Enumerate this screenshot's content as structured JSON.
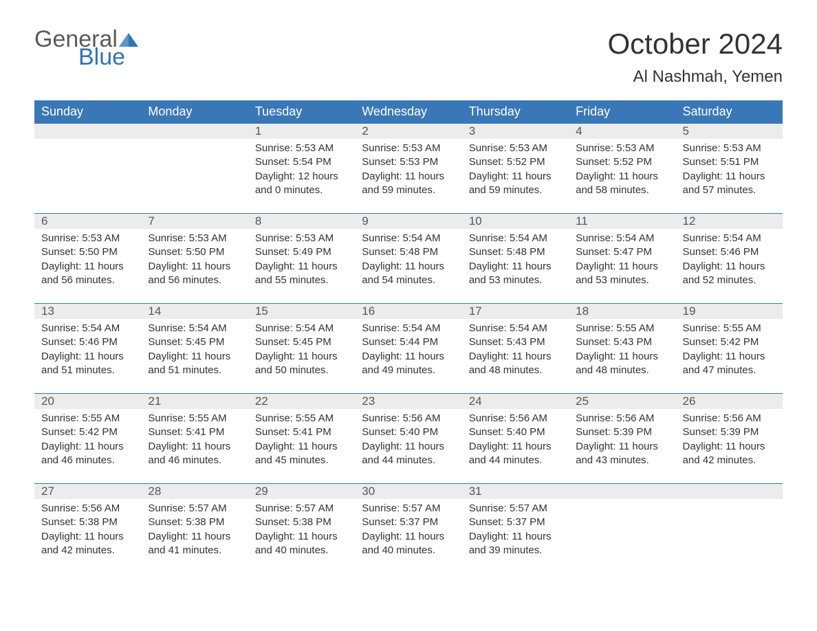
{
  "logo": {
    "word1": "General",
    "word2": "Blue",
    "tri_color": "#2f74b5",
    "text_color": "#5a5a5a"
  },
  "title": "October 2024",
  "location": "Al Nashmah, Yemen",
  "colors": {
    "header_bg": "#3a77b7",
    "header_text": "#ffffff",
    "daynum_bg": "#ececec",
    "row_border": "#3a77b7",
    "body_text": "#333333"
  },
  "fonts": {
    "title_pt": 42,
    "location_pt": 24,
    "header_pt": 18,
    "daynum_pt": 17,
    "body_pt": 15
  },
  "day_headers": [
    "Sunday",
    "Monday",
    "Tuesday",
    "Wednesday",
    "Thursday",
    "Friday",
    "Saturday"
  ],
  "weeks": [
    [
      {
        "empty": true
      },
      {
        "empty": true
      },
      {
        "day": "1",
        "sunrise": "Sunrise: 5:53 AM",
        "sunset": "Sunset: 5:54 PM",
        "dl1": "Daylight: 12 hours",
        "dl2": "and 0 minutes."
      },
      {
        "day": "2",
        "sunrise": "Sunrise: 5:53 AM",
        "sunset": "Sunset: 5:53 PM",
        "dl1": "Daylight: 11 hours",
        "dl2": "and 59 minutes."
      },
      {
        "day": "3",
        "sunrise": "Sunrise: 5:53 AM",
        "sunset": "Sunset: 5:52 PM",
        "dl1": "Daylight: 11 hours",
        "dl2": "and 59 minutes."
      },
      {
        "day": "4",
        "sunrise": "Sunrise: 5:53 AM",
        "sunset": "Sunset: 5:52 PM",
        "dl1": "Daylight: 11 hours",
        "dl2": "and 58 minutes."
      },
      {
        "day": "5",
        "sunrise": "Sunrise: 5:53 AM",
        "sunset": "Sunset: 5:51 PM",
        "dl1": "Daylight: 11 hours",
        "dl2": "and 57 minutes."
      }
    ],
    [
      {
        "day": "6",
        "sunrise": "Sunrise: 5:53 AM",
        "sunset": "Sunset: 5:50 PM",
        "dl1": "Daylight: 11 hours",
        "dl2": "and 56 minutes."
      },
      {
        "day": "7",
        "sunrise": "Sunrise: 5:53 AM",
        "sunset": "Sunset: 5:50 PM",
        "dl1": "Daylight: 11 hours",
        "dl2": "and 56 minutes."
      },
      {
        "day": "8",
        "sunrise": "Sunrise: 5:53 AM",
        "sunset": "Sunset: 5:49 PM",
        "dl1": "Daylight: 11 hours",
        "dl2": "and 55 minutes."
      },
      {
        "day": "9",
        "sunrise": "Sunrise: 5:54 AM",
        "sunset": "Sunset: 5:48 PM",
        "dl1": "Daylight: 11 hours",
        "dl2": "and 54 minutes."
      },
      {
        "day": "10",
        "sunrise": "Sunrise: 5:54 AM",
        "sunset": "Sunset: 5:48 PM",
        "dl1": "Daylight: 11 hours",
        "dl2": "and 53 minutes."
      },
      {
        "day": "11",
        "sunrise": "Sunrise: 5:54 AM",
        "sunset": "Sunset: 5:47 PM",
        "dl1": "Daylight: 11 hours",
        "dl2": "and 53 minutes."
      },
      {
        "day": "12",
        "sunrise": "Sunrise: 5:54 AM",
        "sunset": "Sunset: 5:46 PM",
        "dl1": "Daylight: 11 hours",
        "dl2": "and 52 minutes."
      }
    ],
    [
      {
        "day": "13",
        "sunrise": "Sunrise: 5:54 AM",
        "sunset": "Sunset: 5:46 PM",
        "dl1": "Daylight: 11 hours",
        "dl2": "and 51 minutes."
      },
      {
        "day": "14",
        "sunrise": "Sunrise: 5:54 AM",
        "sunset": "Sunset: 5:45 PM",
        "dl1": "Daylight: 11 hours",
        "dl2": "and 51 minutes."
      },
      {
        "day": "15",
        "sunrise": "Sunrise: 5:54 AM",
        "sunset": "Sunset: 5:45 PM",
        "dl1": "Daylight: 11 hours",
        "dl2": "and 50 minutes."
      },
      {
        "day": "16",
        "sunrise": "Sunrise: 5:54 AM",
        "sunset": "Sunset: 5:44 PM",
        "dl1": "Daylight: 11 hours",
        "dl2": "and 49 minutes."
      },
      {
        "day": "17",
        "sunrise": "Sunrise: 5:54 AM",
        "sunset": "Sunset: 5:43 PM",
        "dl1": "Daylight: 11 hours",
        "dl2": "and 48 minutes."
      },
      {
        "day": "18",
        "sunrise": "Sunrise: 5:55 AM",
        "sunset": "Sunset: 5:43 PM",
        "dl1": "Daylight: 11 hours",
        "dl2": "and 48 minutes."
      },
      {
        "day": "19",
        "sunrise": "Sunrise: 5:55 AM",
        "sunset": "Sunset: 5:42 PM",
        "dl1": "Daylight: 11 hours",
        "dl2": "and 47 minutes."
      }
    ],
    [
      {
        "day": "20",
        "sunrise": "Sunrise: 5:55 AM",
        "sunset": "Sunset: 5:42 PM",
        "dl1": "Daylight: 11 hours",
        "dl2": "and 46 minutes."
      },
      {
        "day": "21",
        "sunrise": "Sunrise: 5:55 AM",
        "sunset": "Sunset: 5:41 PM",
        "dl1": "Daylight: 11 hours",
        "dl2": "and 46 minutes."
      },
      {
        "day": "22",
        "sunrise": "Sunrise: 5:55 AM",
        "sunset": "Sunset: 5:41 PM",
        "dl1": "Daylight: 11 hours",
        "dl2": "and 45 minutes."
      },
      {
        "day": "23",
        "sunrise": "Sunrise: 5:56 AM",
        "sunset": "Sunset: 5:40 PM",
        "dl1": "Daylight: 11 hours",
        "dl2": "and 44 minutes."
      },
      {
        "day": "24",
        "sunrise": "Sunrise: 5:56 AM",
        "sunset": "Sunset: 5:40 PM",
        "dl1": "Daylight: 11 hours",
        "dl2": "and 44 minutes."
      },
      {
        "day": "25",
        "sunrise": "Sunrise: 5:56 AM",
        "sunset": "Sunset: 5:39 PM",
        "dl1": "Daylight: 11 hours",
        "dl2": "and 43 minutes."
      },
      {
        "day": "26",
        "sunrise": "Sunrise: 5:56 AM",
        "sunset": "Sunset: 5:39 PM",
        "dl1": "Daylight: 11 hours",
        "dl2": "and 42 minutes."
      }
    ],
    [
      {
        "day": "27",
        "sunrise": "Sunrise: 5:56 AM",
        "sunset": "Sunset: 5:38 PM",
        "dl1": "Daylight: 11 hours",
        "dl2": "and 42 minutes."
      },
      {
        "day": "28",
        "sunrise": "Sunrise: 5:57 AM",
        "sunset": "Sunset: 5:38 PM",
        "dl1": "Daylight: 11 hours",
        "dl2": "and 41 minutes."
      },
      {
        "day": "29",
        "sunrise": "Sunrise: 5:57 AM",
        "sunset": "Sunset: 5:38 PM",
        "dl1": "Daylight: 11 hours",
        "dl2": "and 40 minutes."
      },
      {
        "day": "30",
        "sunrise": "Sunrise: 5:57 AM",
        "sunset": "Sunset: 5:37 PM",
        "dl1": "Daylight: 11 hours",
        "dl2": "and 40 minutes."
      },
      {
        "day": "31",
        "sunrise": "Sunrise: 5:57 AM",
        "sunset": "Sunset: 5:37 PM",
        "dl1": "Daylight: 11 hours",
        "dl2": "and 39 minutes."
      },
      {
        "empty": true
      },
      {
        "empty": true
      }
    ]
  ]
}
